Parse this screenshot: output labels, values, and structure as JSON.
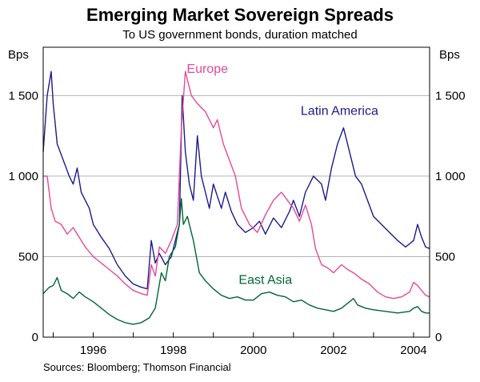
{
  "chart_data": {
    "type": "line",
    "title": "Emerging Market Sovereign Spreads",
    "subtitle": "To US government bonds, duration matched",
    "ylabel_left": "Bps",
    "ylabel_right": "Bps",
    "source": "Sources: Bloomberg; Thomson Financial",
    "ylim": [
      0,
      1800
    ],
    "xlim": [
      1994.75,
      2004.4
    ],
    "y_ticks": [
      0,
      500,
      1000,
      1500
    ],
    "y_tick_labels": [
      "0",
      "500",
      "1 000",
      "1 500"
    ],
    "x_ticks": [
      1996,
      1998,
      2000,
      2002,
      2004
    ],
    "x_tick_labels": [
      "1996",
      "1998",
      "2000",
      "2002",
      "2004"
    ],
    "grid": true,
    "series": [
      {
        "name": "Latin America",
        "color": "#1c1c8c",
        "points": [
          [
            1994.75,
            1150
          ],
          [
            1994.85,
            1500
          ],
          [
            1994.95,
            1650
          ],
          [
            1995.0,
            1450
          ],
          [
            1995.1,
            1200
          ],
          [
            1995.25,
            1100
          ],
          [
            1995.4,
            1000
          ],
          [
            1995.5,
            950
          ],
          [
            1995.6,
            1050
          ],
          [
            1995.7,
            900
          ],
          [
            1995.9,
            800
          ],
          [
            1996.0,
            700
          ],
          [
            1996.2,
            620
          ],
          [
            1996.4,
            550
          ],
          [
            1996.6,
            450
          ],
          [
            1996.8,
            380
          ],
          [
            1997.0,
            330
          ],
          [
            1997.2,
            310
          ],
          [
            1997.35,
            300
          ],
          [
            1997.45,
            600
          ],
          [
            1997.55,
            460
          ],
          [
            1997.65,
            520
          ],
          [
            1997.8,
            450
          ],
          [
            1997.95,
            500
          ],
          [
            1998.05,
            600
          ],
          [
            1998.15,
            700
          ],
          [
            1998.22,
            1500
          ],
          [
            1998.3,
            1150
          ],
          [
            1998.4,
            950
          ],
          [
            1998.5,
            850
          ],
          [
            1998.6,
            1250
          ],
          [
            1998.7,
            1000
          ],
          [
            1998.8,
            900
          ],
          [
            1998.9,
            800
          ],
          [
            1999.0,
            950
          ],
          [
            1999.2,
            800
          ],
          [
            1999.3,
            900
          ],
          [
            1999.45,
            780
          ],
          [
            1999.6,
            700
          ],
          [
            1999.8,
            650
          ],
          [
            2000.0,
            680
          ],
          [
            2000.15,
            720
          ],
          [
            2000.3,
            640
          ],
          [
            2000.5,
            740
          ],
          [
            2000.7,
            680
          ],
          [
            2000.9,
            780
          ],
          [
            2001.0,
            850
          ],
          [
            2001.15,
            750
          ],
          [
            2001.3,
            900
          ],
          [
            2001.5,
            1000
          ],
          [
            2001.7,
            950
          ],
          [
            2001.8,
            850
          ],
          [
            2001.95,
            1050
          ],
          [
            2002.1,
            1200
          ],
          [
            2002.25,
            1300
          ],
          [
            2002.4,
            1150
          ],
          [
            2002.55,
            1000
          ],
          [
            2002.7,
            950
          ],
          [
            2002.85,
            850
          ],
          [
            2003.0,
            750
          ],
          [
            2003.2,
            700
          ],
          [
            2003.4,
            650
          ],
          [
            2003.6,
            600
          ],
          [
            2003.8,
            560
          ],
          [
            2004.0,
            600
          ],
          [
            2004.1,
            700
          ],
          [
            2004.2,
            620
          ],
          [
            2004.3,
            560
          ],
          [
            2004.4,
            550
          ]
        ]
      },
      {
        "name": "Europe",
        "color": "#e8479b",
        "points": [
          [
            1994.75,
            1000
          ],
          [
            1994.85,
            1000
          ],
          [
            1994.95,
            800
          ],
          [
            1995.05,
            720
          ],
          [
            1995.2,
            700
          ],
          [
            1995.35,
            640
          ],
          [
            1995.5,
            680
          ],
          [
            1995.65,
            620
          ],
          [
            1995.8,
            560
          ],
          [
            1996.0,
            500
          ],
          [
            1996.2,
            460
          ],
          [
            1996.4,
            420
          ],
          [
            1996.6,
            380
          ],
          [
            1996.8,
            330
          ],
          [
            1997.0,
            290
          ],
          [
            1997.2,
            270
          ],
          [
            1997.35,
            260
          ],
          [
            1997.45,
            450
          ],
          [
            1997.55,
            380
          ],
          [
            1997.65,
            560
          ],
          [
            1997.8,
            520
          ],
          [
            1997.95,
            600
          ],
          [
            1998.1,
            700
          ],
          [
            1998.2,
            1300
          ],
          [
            1998.3,
            1650
          ],
          [
            1998.45,
            1500
          ],
          [
            1998.6,
            1450
          ],
          [
            1998.8,
            1400
          ],
          [
            1999.0,
            1300
          ],
          [
            1999.1,
            1350
          ],
          [
            1999.25,
            1200
          ],
          [
            1999.4,
            1100
          ],
          [
            1999.55,
            1000
          ],
          [
            1999.7,
            800
          ],
          [
            1999.9,
            700
          ],
          [
            2000.1,
            650
          ],
          [
            2000.3,
            760
          ],
          [
            2000.5,
            850
          ],
          [
            2000.7,
            900
          ],
          [
            2000.85,
            850
          ],
          [
            2001.0,
            800
          ],
          [
            2001.15,
            720
          ],
          [
            2001.3,
            820
          ],
          [
            2001.45,
            700
          ],
          [
            2001.55,
            550
          ],
          [
            2001.7,
            450
          ],
          [
            2001.85,
            430
          ],
          [
            2002.0,
            400
          ],
          [
            2002.2,
            450
          ],
          [
            2002.35,
            420
          ],
          [
            2002.5,
            400
          ],
          [
            2002.7,
            360
          ],
          [
            2002.9,
            330
          ],
          [
            2003.1,
            280
          ],
          [
            2003.3,
            250
          ],
          [
            2003.5,
            240
          ],
          [
            2003.7,
            250
          ],
          [
            2003.9,
            280
          ],
          [
            2004.0,
            340
          ],
          [
            2004.1,
            320
          ],
          [
            2004.2,
            290
          ],
          [
            2004.3,
            260
          ],
          [
            2004.4,
            250
          ]
        ]
      },
      {
        "name": "East Asia",
        "color": "#006633",
        "points": [
          [
            1994.75,
            270
          ],
          [
            1994.9,
            310
          ],
          [
            1995.0,
            320
          ],
          [
            1995.1,
            370
          ],
          [
            1995.2,
            290
          ],
          [
            1995.35,
            270
          ],
          [
            1995.5,
            240
          ],
          [
            1995.65,
            280
          ],
          [
            1995.8,
            250
          ],
          [
            1996.0,
            220
          ],
          [
            1996.2,
            180
          ],
          [
            1996.4,
            140
          ],
          [
            1996.6,
            110
          ],
          [
            1996.8,
            90
          ],
          [
            1997.0,
            80
          ],
          [
            1997.2,
            90
          ],
          [
            1997.4,
            120
          ],
          [
            1997.55,
            180
          ],
          [
            1997.7,
            400
          ],
          [
            1997.8,
            350
          ],
          [
            1997.9,
            500
          ],
          [
            1998.05,
            560
          ],
          [
            1998.15,
            700
          ],
          [
            1998.2,
            860
          ],
          [
            1998.25,
            700
          ],
          [
            1998.35,
            750
          ],
          [
            1998.5,
            600
          ],
          [
            1998.65,
            400
          ],
          [
            1998.8,
            350
          ],
          [
            1999.0,
            300
          ],
          [
            1999.2,
            260
          ],
          [
            1999.4,
            240
          ],
          [
            1999.6,
            250
          ],
          [
            1999.8,
            230
          ],
          [
            2000.0,
            230
          ],
          [
            2000.2,
            270
          ],
          [
            2000.4,
            280
          ],
          [
            2000.6,
            260
          ],
          [
            2000.8,
            250
          ],
          [
            2001.0,
            220
          ],
          [
            2001.2,
            230
          ],
          [
            2001.4,
            200
          ],
          [
            2001.6,
            180
          ],
          [
            2001.8,
            170
          ],
          [
            2002.0,
            160
          ],
          [
            2002.2,
            180
          ],
          [
            2002.4,
            220
          ],
          [
            2002.5,
            240
          ],
          [
            2002.6,
            200
          ],
          [
            2002.8,
            180
          ],
          [
            2003.0,
            170
          ],
          [
            2003.3,
            160
          ],
          [
            2003.6,
            150
          ],
          [
            2003.9,
            160
          ],
          [
            2004.0,
            180
          ],
          [
            2004.1,
            190
          ],
          [
            2004.2,
            160
          ],
          [
            2004.3,
            150
          ],
          [
            2004.4,
            150
          ]
        ]
      }
    ],
    "annotations": [
      {
        "text": "Europe",
        "series": "Europe",
        "x": 1998.85,
        "y": 1640
      },
      {
        "text": "Latin America",
        "series": "Latin America",
        "x": 2002.15,
        "y": 1380
      },
      {
        "text": "East Asia",
        "series": "East Asia",
        "x": 2000.3,
        "y": 330
      }
    ]
  }
}
